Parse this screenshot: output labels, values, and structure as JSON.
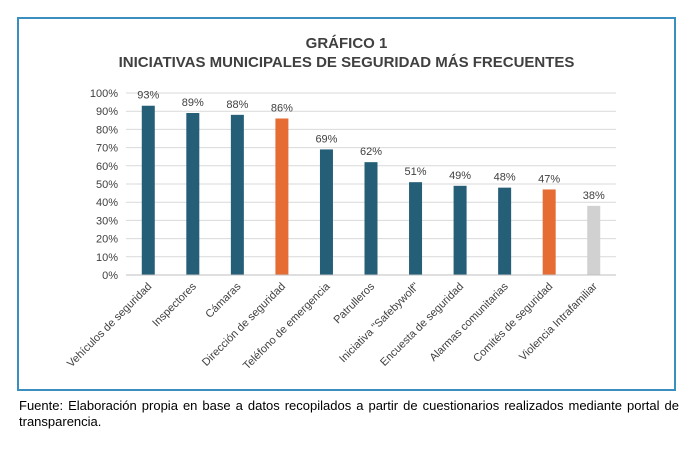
{
  "figure": {
    "heading": "GRÁFICO 1",
    "title": "INICIATIVAS MUNICIPALES DE SEGURIDAD MÁS FRECUENTES"
  },
  "source_note": "Fuente: Elaboración propia en base a datos recopilados a partir de cuestionarios realizados mediante portal de transparencia.",
  "colors": {
    "primary": "#255e77",
    "highlight": "#e56d34",
    "muted": "#d1d1d1",
    "frame": "#3b8ec0",
    "grid": "#d9d9d9",
    "text": "#404040"
  },
  "chart_data": {
    "type": "bar",
    "title": "INICIATIVAS MUNICIPALES DE SEGURIDAD MÁS FRECUENTES",
    "xlabel": "",
    "ylabel": "",
    "ylim": [
      0,
      100
    ],
    "ytick_step": 10,
    "yticks": [
      "0%",
      "10%",
      "20%",
      "30%",
      "40%",
      "50%",
      "60%",
      "70%",
      "80%",
      "90%",
      "100%"
    ],
    "grid": true,
    "categories": [
      "Vehículos de seguridad",
      "Inspectores",
      "Cámaras",
      "Dirección de seguridad",
      "Teléfono de emergencia",
      "Patrulleros",
      "Iniciativa \"Safebywolf\"",
      "Encuesta de seguridad",
      "Alarmas comunitarias",
      "Comités de seguridad",
      "Violencia Intrafamiliar"
    ],
    "values": [
      93,
      89,
      88,
      86,
      69,
      62,
      51,
      49,
      48,
      47,
      38
    ],
    "value_labels": [
      "93%",
      "89%",
      "88%",
      "86%",
      "69%",
      "62%",
      "51%",
      "49%",
      "48%",
      "47%",
      "38%"
    ],
    "bar_colors": [
      "#255e77",
      "#255e77",
      "#255e77",
      "#e56d34",
      "#255e77",
      "#255e77",
      "#255e77",
      "#255e77",
      "#255e77",
      "#e56d34",
      "#d1d1d1"
    ]
  }
}
